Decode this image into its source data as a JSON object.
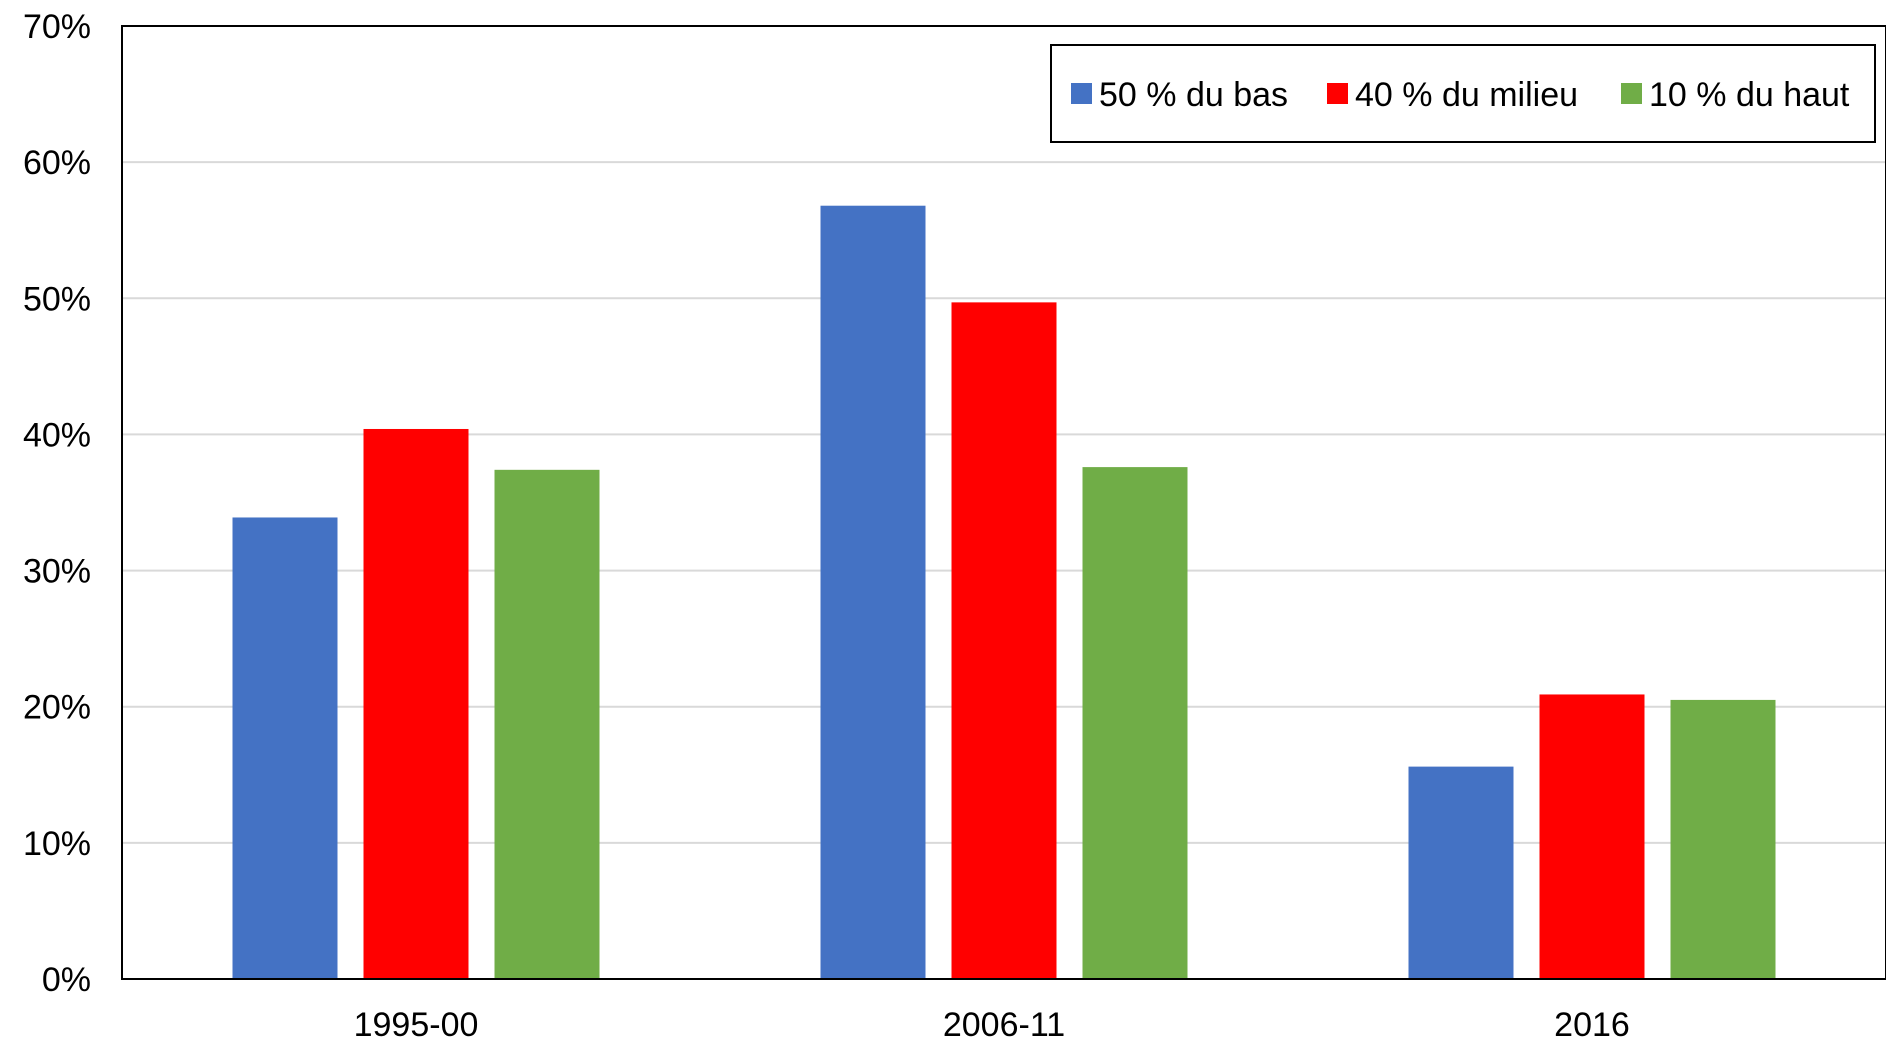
{
  "chart_data": {
    "type": "bar",
    "title": "",
    "xlabel": "",
    "ylabel": "",
    "categories": [
      "1995-00",
      "2006-11",
      "2016"
    ],
    "ylim": [
      0,
      0.7
    ],
    "yticks": [
      0,
      0.1,
      0.2,
      0.3,
      0.4,
      0.5,
      0.6,
      0.7
    ],
    "ytick_labels": [
      "0%",
      "10%",
      "20%",
      "30%",
      "40%",
      "50%",
      "60%",
      "70%"
    ],
    "grid": true,
    "legend_position": "top-right",
    "series": [
      {
        "name": "50 % du bas",
        "color": "#4472C4",
        "values": [
          0.339,
          0.568,
          0.156
        ]
      },
      {
        "name": "40 % du milieu",
        "color": "#FF0000",
        "values": [
          0.404,
          0.497,
          0.209
        ]
      },
      {
        "name": "10 % du haut",
        "color": "#70AD47",
        "values": [
          0.374,
          0.376,
          0.205
        ]
      }
    ]
  }
}
